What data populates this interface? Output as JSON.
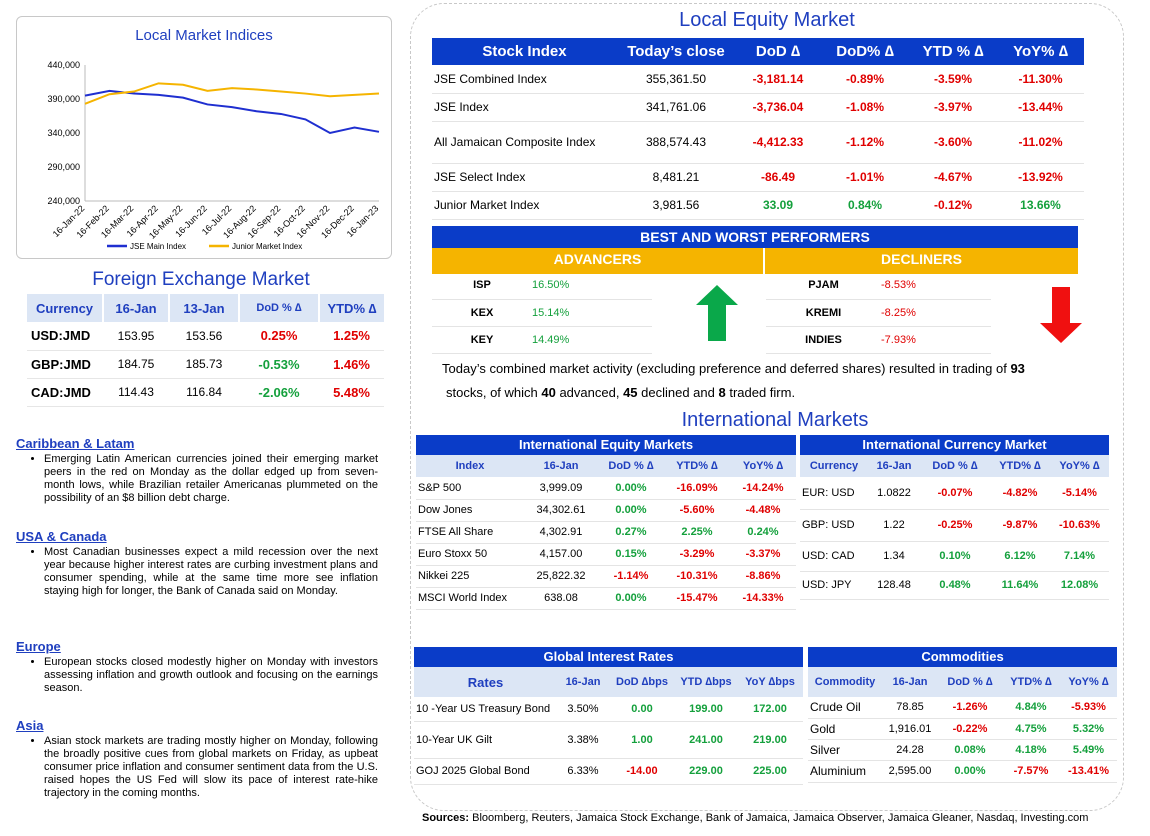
{
  "chart": {
    "title": "Local Market Indices",
    "legend": [
      "JSE Main Index",
      "Junior Market Index"
    ],
    "y_ticks": [
      "440,000",
      "390,000",
      "340,000",
      "290,000",
      "240,000"
    ],
    "x_ticks": [
      "16-Jan-22",
      "16-Feb-22",
      "16-Mar-22",
      "16-Apr-22",
      "16-May-22",
      "16-Jun-22",
      "16-Jul-22",
      "16-Aug-22",
      "16-Sep-22",
      "16-Oct-22",
      "16-Nov-22",
      "16-Dec-22",
      "16-Jan-23"
    ]
  },
  "chart_data": {
    "type": "line",
    "title": "Local Market Indices",
    "ylim": [
      240000,
      440000
    ],
    "categories": [
      "16-Jan-22",
      "16-Feb-22",
      "16-Mar-22",
      "16-Apr-22",
      "16-May-22",
      "16-Jun-22",
      "16-Jul-22",
      "16-Aug-22",
      "16-Sep-22",
      "16-Oct-22",
      "16-Nov-22",
      "16-Dec-22",
      "16-Jan-23"
    ],
    "series": [
      {
        "name": "JSE Main Index",
        "color": "#1f2fd0",
        "values": [
          395000,
          402000,
          398000,
          396000,
          392000,
          382000,
          378000,
          372000,
          368000,
          360000,
          340000,
          348000,
          341762
        ]
      },
      {
        "name": "Junior Market Index",
        "color": "#f5b400",
        "values": [
          383000,
          397000,
          401000,
          413000,
          411000,
          402000,
          406000,
          404000,
          401000,
          398000,
          394000,
          396000,
          398156
        ]
      }
    ]
  },
  "fx": {
    "title": "Foreign Exchange Market",
    "headers": [
      "Currency",
      "16-Jan",
      "13-Jan",
      "DoD % ∆",
      "YTD% ∆"
    ],
    "rows": [
      {
        "c": "USD:JMD",
        "a": "153.95",
        "b": "153.56",
        "d": "0.25%",
        "dc": "red",
        "y": "1.25%",
        "yc": "red"
      },
      {
        "c": "GBP:JMD",
        "a": "184.75",
        "b": "185.73",
        "d": "-0.53%",
        "dc": "green",
        "y": "1.46%",
        "yc": "red"
      },
      {
        "c": "CAD:JMD",
        "a": "114.43",
        "b": "116.84",
        "d": "-2.06%",
        "dc": "green",
        "y": "5.48%",
        "yc": "red"
      }
    ]
  },
  "news": [
    {
      "h": "Caribbean & Latam",
      "t": "Emerging Latin American currencies joined their emerging market peers in the red on Monday as the dollar edged up from seven-month lows, while Brazilian retailer Americanas plummeted on the possibility of an $8 billion debt charge."
    },
    {
      "h": "USA & Canada",
      "t": "Most Canadian businesses expect a mild recession over the next year because higher interest rates are curbing investment plans and consumer spending, while at the same time more see inflation staying high for longer, the Bank of Canada said on Monday."
    },
    {
      "h": "Europe",
      "t": "European stocks closed modestly higher on Monday with investors assessing inflation and growth outlook and focusing on the earnings season."
    },
    {
      "h": "Asia",
      "t": "Asian stock markets are trading mostly higher on Monday, following the broadly positive cues from global markets on Friday, as upbeat consumer price inflation and consumer sentiment data from the U.S. raised hopes the US Fed will slow its pace of interest rate-hike trajectory in the coming months."
    }
  ],
  "local": {
    "title": "Local Equity Market",
    "headers": [
      "Stock Index",
      "Today’s close",
      "DoD ∆",
      "DoD% ∆",
      "YTD % ∆",
      "YoY% ∆"
    ],
    "rows": [
      {
        "n": "JSE Combined Index",
        "v": "355,361.50",
        "d": "-3,181.14",
        "dp": "-0.89%",
        "y": "-3.59%",
        "yy": "-11.30%",
        "c": [
          "red",
          "red",
          "red",
          "red"
        ]
      },
      {
        "n": "JSE Index",
        "v": "341,761.06",
        "d": "-3,736.04",
        "dp": "-1.08%",
        "y": "-3.97%",
        "yy": "-13.44%",
        "c": [
          "red",
          "red",
          "red",
          "red"
        ]
      },
      {
        "n": "All Jamaican Composite Index",
        "v": "388,574.43",
        "d": "-4,412.33",
        "dp": "-1.12%",
        "y": "-3.60%",
        "yy": "-11.02%",
        "c": [
          "red",
          "red",
          "red",
          "red"
        ]
      },
      {
        "n": "JSE Select Index",
        "v": "8,481.21",
        "d": "-86.49",
        "dp": "-1.01%",
        "y": "-4.67%",
        "yy": "-13.92%",
        "c": [
          "red",
          "red",
          "red",
          "red"
        ]
      },
      {
        "n": "Junior Market Index",
        "v": "3,981.56",
        "d": "33.09",
        "dp": "0.84%",
        "y": "-0.12%",
        "yy": "13.66%",
        "c": [
          "green",
          "green",
          "red",
          "green"
        ]
      }
    ]
  },
  "performers": {
    "title": "BEST AND WORST PERFORMERS",
    "adv_label": "ADVANCERS",
    "dec_label": "DECLINERS",
    "adv": [
      [
        "ISP",
        "16.50%"
      ],
      [
        "KEX",
        "15.14%"
      ],
      [
        "KEY",
        "14.49%"
      ]
    ],
    "dec": [
      [
        "PJAM",
        "-8.53%"
      ],
      [
        "KREMI",
        "-8.25%"
      ],
      [
        "INDIES",
        "-7.93%"
      ]
    ]
  },
  "summary": {
    "p1": "Today’s combined market activity (excluding preference and deferred shares) resulted in trading of ",
    "n1": "93",
    "p2": "stocks, of which ",
    "n2": "40",
    "p3": " advanced, ",
    "n3": "45",
    "p4": " declined and ",
    "n4": "8",
    "p5": " traded firm."
  },
  "intl_title": "International Markets",
  "ieq": {
    "title": "International Equity Markets",
    "headers": [
      "Index",
      "16-Jan",
      "DoD % ∆",
      "YTD% ∆",
      "YoY% ∆"
    ],
    "rows": [
      [
        "S&P 500",
        "3,999.09",
        "0.00%",
        "-16.09%",
        "-14.24%"
      ],
      [
        "Dow Jones",
        "34,302.61",
        "0.00%",
        "-5.60%",
        "-4.48%"
      ],
      [
        "FTSE All Share",
        "4,302.91",
        "0.27%",
        "2.25%",
        "0.24%"
      ],
      [
        "Euro Stoxx 50",
        "4,157.00",
        "0.15%",
        "-3.29%",
        "-3.37%"
      ],
      [
        "Nikkei 225",
        "25,822.32",
        "-1.14%",
        "-10.31%",
        "-8.86%"
      ],
      [
        "MSCI World Index",
        "638.08",
        "0.00%",
        "-15.47%",
        "-14.33%"
      ]
    ],
    "colors": [
      [
        "green",
        "red",
        "red"
      ],
      [
        "green",
        "red",
        "red"
      ],
      [
        "green",
        "green",
        "green"
      ],
      [
        "green",
        "red",
        "red"
      ],
      [
        "red",
        "red",
        "red"
      ],
      [
        "green",
        "red",
        "red"
      ]
    ]
  },
  "icur": {
    "title": "International Currency Market",
    "headers": [
      "Currency",
      "16-Jan",
      "DoD % ∆",
      "YTD% ∆",
      "YoY% ∆"
    ],
    "rows": [
      [
        "EUR: USD",
        "1.0822",
        "-0.07%",
        "-4.82%",
        "-5.14%"
      ],
      [
        "GBP: USD",
        "1.22",
        "-0.25%",
        "-9.87%",
        "-10.63%"
      ],
      [
        "USD: CAD",
        "1.34",
        "0.10%",
        "6.12%",
        "7.14%"
      ],
      [
        "USD: JPY",
        "128.48",
        "0.48%",
        "11.64%",
        "12.08%"
      ]
    ],
    "colors": [
      [
        "red",
        "red",
        "red"
      ],
      [
        "red",
        "red",
        "red"
      ],
      [
        "green",
        "green",
        "green"
      ],
      [
        "green",
        "green",
        "green"
      ]
    ]
  },
  "rates": {
    "title": "Global Interest Rates",
    "headers": [
      "Rates",
      "16-Jan",
      "DoD ∆bps",
      "YTD ∆bps",
      "YoY ∆bps"
    ],
    "rows": [
      [
        "10 -Year US Treasury Bond",
        "3.50%",
        "0.00",
        "199.00",
        "172.00"
      ],
      [
        "10-Year UK Gilt",
        "3.38%",
        "1.00",
        "241.00",
        "219.00"
      ],
      [
        "GOJ 2025 Global Bond",
        "6.33%",
        "-14.00",
        "229.00",
        "225.00"
      ]
    ],
    "colors": [
      [
        "green",
        "green",
        "green"
      ],
      [
        "green",
        "green",
        "green"
      ],
      [
        "red",
        "green",
        "green"
      ]
    ]
  },
  "comm": {
    "title": "Commodities",
    "headers": [
      "Commodity",
      "16-Jan",
      "DoD % ∆",
      "YTD% ∆",
      "YoY% ∆"
    ],
    "rows": [
      [
        "Crude Oil",
        "78.85",
        "-1.26%",
        "4.84%",
        "-5.93%"
      ],
      [
        "Gold",
        "1,916.01",
        "-0.22%",
        "4.75%",
        "5.32%"
      ],
      [
        "Silver",
        "24.28",
        "0.08%",
        "4.18%",
        "5.49%"
      ],
      [
        "Aluminium",
        "2,595.00",
        "0.00%",
        "-7.57%",
        "-13.41%"
      ]
    ],
    "colors": [
      [
        "red",
        "green",
        "red"
      ],
      [
        "red",
        "green",
        "green"
      ],
      [
        "green",
        "green",
        "green"
      ],
      [
        "green",
        "red",
        "red"
      ]
    ]
  },
  "sources": {
    "label": "Sources:",
    "text": " Bloomberg, Reuters, Jamaica Stock Exchange, Bank of Jamaica, Jamaica Observer, Jamaica Gleaner, Nasdaq, Investing.com"
  }
}
